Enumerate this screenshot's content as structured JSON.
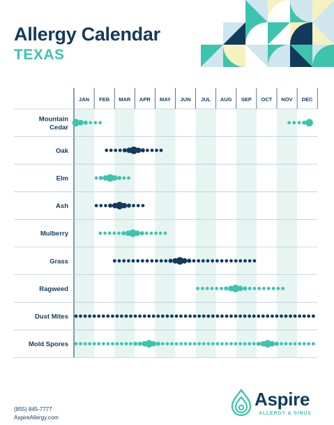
{
  "header": {
    "title": "Allergy Calendar",
    "subtitle": "TEXAS"
  },
  "colors": {
    "navy": "#123a5c",
    "teal": "#3ec4ae",
    "column_stripe": "#e7f5f2",
    "grid": "#b7cbd6",
    "cream": "#f7f1bf",
    "sky": "#cfe6ef"
  },
  "chart_data": {
    "type": "scatter",
    "x_categories": [
      "JAN",
      "FEB",
      "MAR",
      "APR",
      "MAY",
      "JUN",
      "JUL",
      "AUG",
      "SEP",
      "OCT",
      "NOV",
      "DEC"
    ],
    "shaded_months": [
      "JAN",
      "MAR",
      "MAY",
      "JUL",
      "SEP",
      "NOV"
    ],
    "grid": true,
    "rows": [
      {
        "label": "Mountain Cedar",
        "color": "teal",
        "ranges": [
          {
            "start": 1.0,
            "end": 2.4,
            "peak": 1.1
          },
          {
            "start": 11.5,
            "end": 12.7,
            "peak": 12.7
          }
        ]
      },
      {
        "label": "Oak",
        "color": "navy",
        "ranges": [
          {
            "start": 2.5,
            "end": 5.4,
            "peak": 3.9
          }
        ]
      },
      {
        "label": "Elm",
        "color": "teal",
        "ranges": [
          {
            "start": 2.0,
            "end": 3.8,
            "peak": 2.7
          }
        ]
      },
      {
        "label": "Ash",
        "color": "navy",
        "ranges": [
          {
            "start": 2.0,
            "end": 4.5,
            "peak": 3.2
          }
        ]
      },
      {
        "label": "Mulberry",
        "color": "teal",
        "ranges": [
          {
            "start": 2.2,
            "end": 5.6,
            "peak": 3.8
          }
        ]
      },
      {
        "label": "Grass",
        "color": "navy",
        "ranges": [
          {
            "start": 2.9,
            "end": 10.0,
            "peak": 6.2
          }
        ]
      },
      {
        "label": "Ragweed",
        "color": "teal",
        "ranges": [
          {
            "start": 7.0,
            "end": 11.4,
            "peak": 9.0
          }
        ]
      },
      {
        "label": "Dust Mites",
        "color": "navy",
        "ranges": [
          {
            "start": 1.0,
            "end": 12.9,
            "peak": null
          }
        ]
      },
      {
        "label": "Mold Spores",
        "color": "teal",
        "ranges": [
          {
            "start": 1.0,
            "end": 12.9,
            "peak": [
              4.6,
              10.5
            ]
          }
        ]
      }
    ]
  },
  "footer": {
    "phone": "(855) 845-7777",
    "url": "AspireAllergy.com"
  },
  "logo": {
    "name": "Aspire",
    "tagline": "ALLERGY & SINUS"
  }
}
